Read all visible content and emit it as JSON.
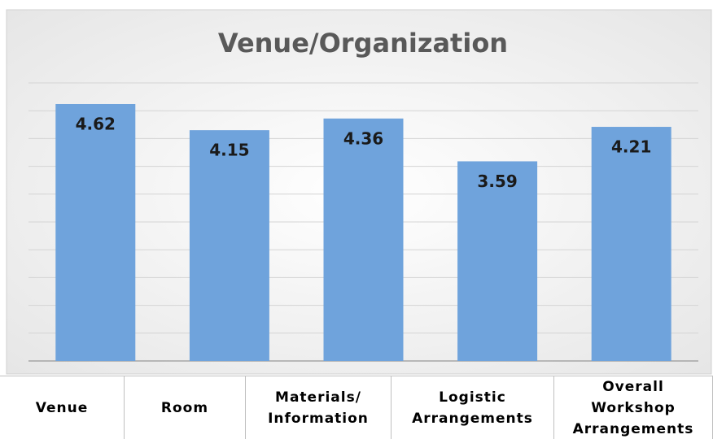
{
  "chart_data": {
    "type": "bar",
    "title": "Venue/Organization",
    "categories": [
      "Venue",
      "Room",
      "Materials/ Information",
      "Logistic Arrangements",
      "Overall Workshop Arrangements"
    ],
    "values": [
      4.62,
      4.15,
      4.36,
      3.59,
      4.21
    ],
    "color": "#6fa3dc",
    "ylim": [
      0,
      5
    ],
    "yticks": [
      0,
      0.5,
      1,
      1.5,
      2,
      2.5,
      3,
      3.5,
      4,
      4.5,
      5
    ],
    "grid": true
  }
}
